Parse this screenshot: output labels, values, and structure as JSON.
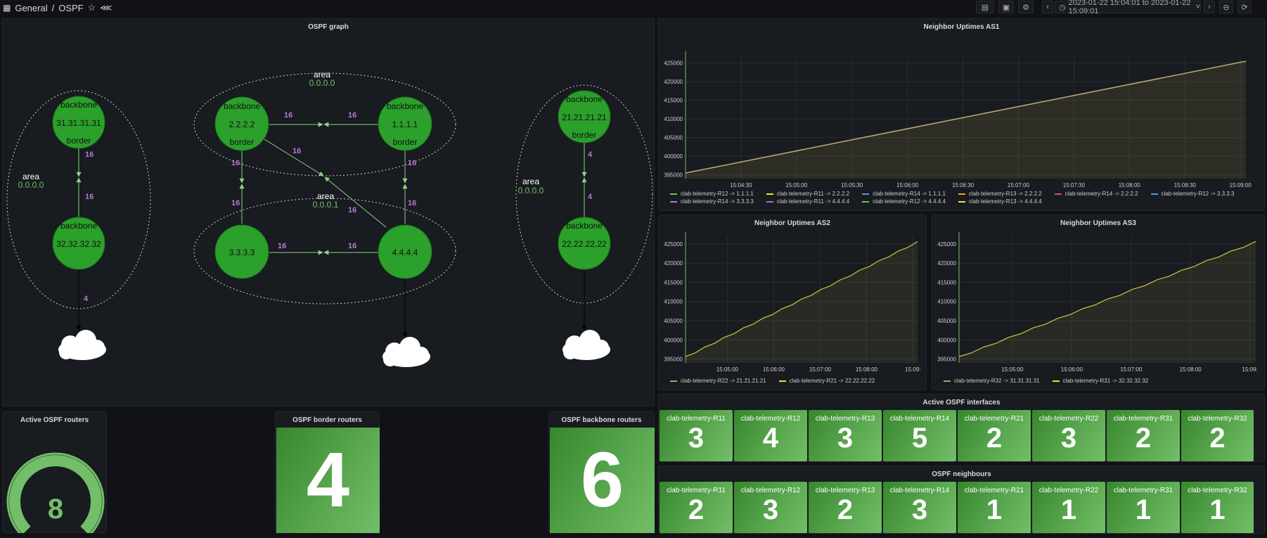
{
  "header": {
    "breadcrumb_root": "General",
    "separator": "/",
    "breadcrumb_page": "OSPF",
    "time_range": "2023-01-22 15:04:01 to 2023-01-22 15:09:01"
  },
  "ospf_graph": {
    "title": "OSPF graph",
    "areas": [
      {
        "word": "area",
        "id": "0.0.0.0"
      },
      {
        "word": "area",
        "id": "0.0.0.0"
      },
      {
        "word": "area",
        "id": "0.0.0.1"
      },
      {
        "word": "area",
        "id": "0.0.0.0"
      }
    ],
    "nodes": [
      {
        "top": "backbone",
        "mid": "31.31.31.31",
        "bot": "border"
      },
      {
        "top": "backbone",
        "mid": "32.32.32.32",
        "bot": ""
      },
      {
        "top": "backbone",
        "mid": "2.2.2.2",
        "bot": "border"
      },
      {
        "top": "backbone",
        "mid": "1.1.1.1",
        "bot": "border"
      },
      {
        "top": "",
        "mid": "3.3.3.3",
        "bot": ""
      },
      {
        "top": "",
        "mid": "4.4.4.4",
        "bot": ""
      },
      {
        "top": "backbone",
        "mid": "21.21.21.21",
        "bot": "border"
      },
      {
        "top": "backbone",
        "mid": "22.22.22.22",
        "bot": ""
      }
    ],
    "edge_labels": [
      "16",
      "16",
      "16",
      "16",
      "16",
      "16",
      "16",
      "16",
      "16",
      "16",
      "16",
      "16",
      "4",
      "4",
      "4"
    ]
  },
  "active_routers": {
    "title": "Active OSPF routers",
    "value": "8",
    "fraction": 1.0
  },
  "border_routers": {
    "title": "OSPF border routers",
    "value": "4"
  },
  "backbone_routers": {
    "title": "OSPF backbone routers",
    "value": "6"
  },
  "colors": {
    "green": "#73bf69",
    "node": "#2ba02b",
    "purple": "#b877d9",
    "line_as1": "#c8b95a",
    "line_as": "#9fa14a"
  },
  "charts": {
    "as1": {
      "title": "Neighbor Uptimes AS1"
    },
    "as2": {
      "title": "Neighbor Uptimes AS2"
    },
    "as3": {
      "title": "Neighbor Uptimes AS3"
    }
  },
  "chart_data": [
    {
      "type": "line",
      "title": "Neighbor Uptimes AS1",
      "y_ticks": [
        "425000",
        "420000",
        "415000",
        "410000",
        "405000",
        "400000",
        "395000"
      ],
      "x_ticks": [
        "15:04:30",
        "15:05:00",
        "15:05:30",
        "15:06:00",
        "15:06:30",
        "15:07:00",
        "15:07:30",
        "15:08:00",
        "15:08:30",
        "15:09:00"
      ],
      "ylim": [
        394000,
        427000
      ],
      "x": [
        "15:04:01",
        "15:09:01"
      ],
      "series": [
        {
          "name": "clab-telemetry-R12 -> 1.1.1.1",
          "color": "#73bf69",
          "values": [
            395500,
            425500
          ]
        },
        {
          "name": "clab-telemetry-R11 -> 2.2.2.2",
          "color": "#fade2a",
          "values": [
            395500,
            425500
          ]
        },
        {
          "name": "clab-telemetry-R14 -> 1.1.1.1",
          "color": "#5794f2",
          "values": [
            395500,
            425500
          ]
        },
        {
          "name": "clab-telemetry-R13 -> 2.2.2.2",
          "color": "#ff9830",
          "values": [
            395500,
            425500
          ]
        },
        {
          "name": "clab-telemetry-R14 -> 2.2.2.2",
          "color": "#f2495c",
          "values": [
            395500,
            425500
          ]
        },
        {
          "name": "clab-telemetry-R12 -> 3.3.3.3",
          "color": "#5794f2",
          "values": [
            395500,
            425500
          ]
        },
        {
          "name": "clab-telemetry-R14 -> 3.3.3.3",
          "color": "#b877d9",
          "values": [
            395500,
            425500
          ]
        },
        {
          "name": "clab-telemetry-R11 -> 4.4.4.4",
          "color": "#8f7bdb",
          "values": [
            395500,
            425500
          ]
        },
        {
          "name": "clab-telemetry-R12 -> 4.4.4.4",
          "color": "#73bf69",
          "values": [
            395500,
            425500
          ]
        },
        {
          "name": "clab-telemetry-R13 -> 4.4.4.4",
          "color": "#fade2a",
          "values": [
            395500,
            425500
          ]
        }
      ]
    },
    {
      "type": "line",
      "title": "Neighbor Uptimes AS2",
      "y_ticks": [
        "425000",
        "420000",
        "415000",
        "410000",
        "405000",
        "400000",
        "395000"
      ],
      "x_ticks": [
        "15:05:00",
        "15:06:00",
        "15:07:00",
        "15:08:00",
        "15:09:"
      ],
      "ylim": [
        394000,
        427000
      ],
      "x": [
        "15:04:01",
        "15:09:01"
      ],
      "series": [
        {
          "name": "clab-telemetry-R22 -> 21.21.21.21",
          "color": "#73bf69",
          "values": [
            395500,
            425500
          ]
        },
        {
          "name": "clab-telemetry-R21 -> 22.22.22.22",
          "color": "#fade2a",
          "values": [
            395500,
            425500
          ]
        }
      ]
    },
    {
      "type": "line",
      "title": "Neighbor Uptimes AS3",
      "y_ticks": [
        "425000",
        "420000",
        "415000",
        "410000",
        "405000",
        "400000",
        "395000"
      ],
      "x_ticks": [
        "15:05:00",
        "15:06:00",
        "15:07:00",
        "15:08:00",
        "15:09:"
      ],
      "ylim": [
        394000,
        427000
      ],
      "x": [
        "15:04:01",
        "15:09:01"
      ],
      "series": [
        {
          "name": "clab-telemetry-R32 -> 31.31.31.31",
          "color": "#73bf69",
          "values": [
            395500,
            425500
          ]
        },
        {
          "name": "clab-telemetry-R31 -> 32.32.32.32",
          "color": "#fade2a",
          "values": [
            395500,
            425500
          ]
        }
      ]
    }
  ],
  "interfaces": {
    "title": "Active OSPF interfaces",
    "items": [
      {
        "label": "clab-telemetry-R11",
        "value": "3"
      },
      {
        "label": "clab-telemetry-R12",
        "value": "4"
      },
      {
        "label": "clab-telemetry-R13",
        "value": "3"
      },
      {
        "label": "clab-telemetry-R14",
        "value": "5"
      },
      {
        "label": "clab-telemetry-R21",
        "value": "2"
      },
      {
        "label": "clab-telemetry-R22",
        "value": "3"
      },
      {
        "label": "clab-telemetry-R31",
        "value": "2"
      },
      {
        "label": "clab-telemetry-R32",
        "value": "2"
      }
    ]
  },
  "neighbours": {
    "title": "OSPF neighbours",
    "items": [
      {
        "label": "clab-telemetry-R11",
        "value": "2"
      },
      {
        "label": "clab-telemetry-R12",
        "value": "3"
      },
      {
        "label": "clab-telemetry-R13",
        "value": "2"
      },
      {
        "label": "clab-telemetry-R14",
        "value": "3"
      },
      {
        "label": "clab-telemetry-R21",
        "value": "1"
      },
      {
        "label": "clab-telemetry-R22",
        "value": "1"
      },
      {
        "label": "clab-telemetry-R31",
        "value": "1"
      },
      {
        "label": "clab-telemetry-R32",
        "value": "1"
      }
    ]
  }
}
